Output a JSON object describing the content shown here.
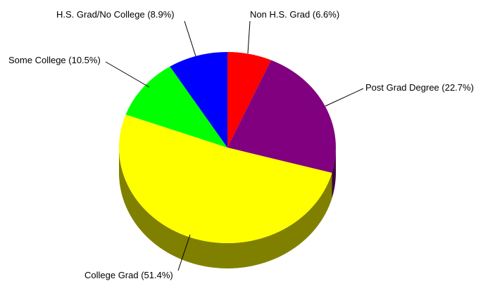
{
  "chart_data": {
    "type": "pie",
    "title": "",
    "three_d": true,
    "start_angle_deg": 90,
    "direction": "clockwise",
    "slices": [
      {
        "label": "Non H.S. Grad (6.6%)",
        "value": 6.6,
        "color": "#ff0000",
        "side_color": "#7f0000"
      },
      {
        "label": "Post Grad Degree (22.7%)",
        "value": 22.7,
        "color": "#800080",
        "side_color": "#400040"
      },
      {
        "label": "College Grad (51.4%)",
        "value": 51.4,
        "color": "#ffff00",
        "side_color": "#808000"
      },
      {
        "label": "Some College (10.5%)",
        "value": 10.5,
        "color": "#00ff00",
        "side_color": "#008000"
      },
      {
        "label": "H.S. Grad/No College (8.9%)",
        "value": 8.9,
        "color": "#0000ff",
        "side_color": "#000080"
      }
    ]
  }
}
